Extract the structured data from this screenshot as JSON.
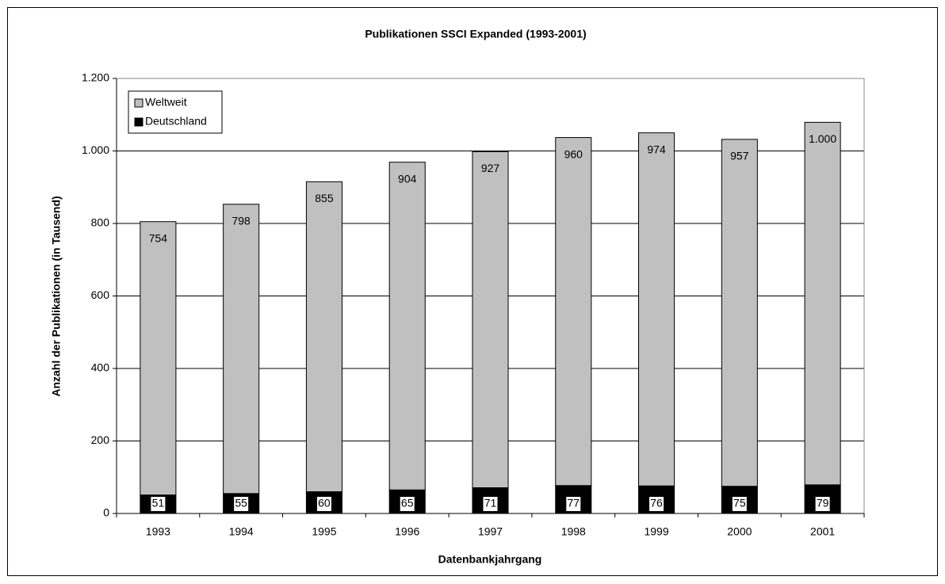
{
  "chart_data": {
    "type": "stacked_bar",
    "title": "Publikationen SSCI Expanded (1993-2001)",
    "x_label": "Datenbankjahrgang",
    "y_label": "Anzahl der Publikationen (in Tausend)",
    "categories": [
      "1993",
      "1994",
      "1995",
      "1996",
      "1997",
      "1998",
      "1999",
      "2000",
      "2001"
    ],
    "series": [
      {
        "name": "Weltweit",
        "color": "#c0c0c0",
        "values": [
          754,
          798,
          855,
          904,
          927,
          960,
          974,
          957,
          1000
        ],
        "value_labels": [
          "754",
          "798",
          "855",
          "904",
          "927",
          "960",
          "974",
          "957",
          "1.000"
        ]
      },
      {
        "name": "Deutschland",
        "color": "#000000",
        "values": [
          51,
          55,
          60,
          65,
          71,
          77,
          76,
          75,
          79
        ]
      }
    ],
    "ylim": [
      0,
      1200
    ],
    "yticks": [
      0,
      200,
      400,
      600,
      800,
      {
        "value": 1000,
        "label": "1.000"
      },
      {
        "value": 1200,
        "label": "1.200"
      }
    ],
    "grid": true,
    "legend": "top-left"
  }
}
